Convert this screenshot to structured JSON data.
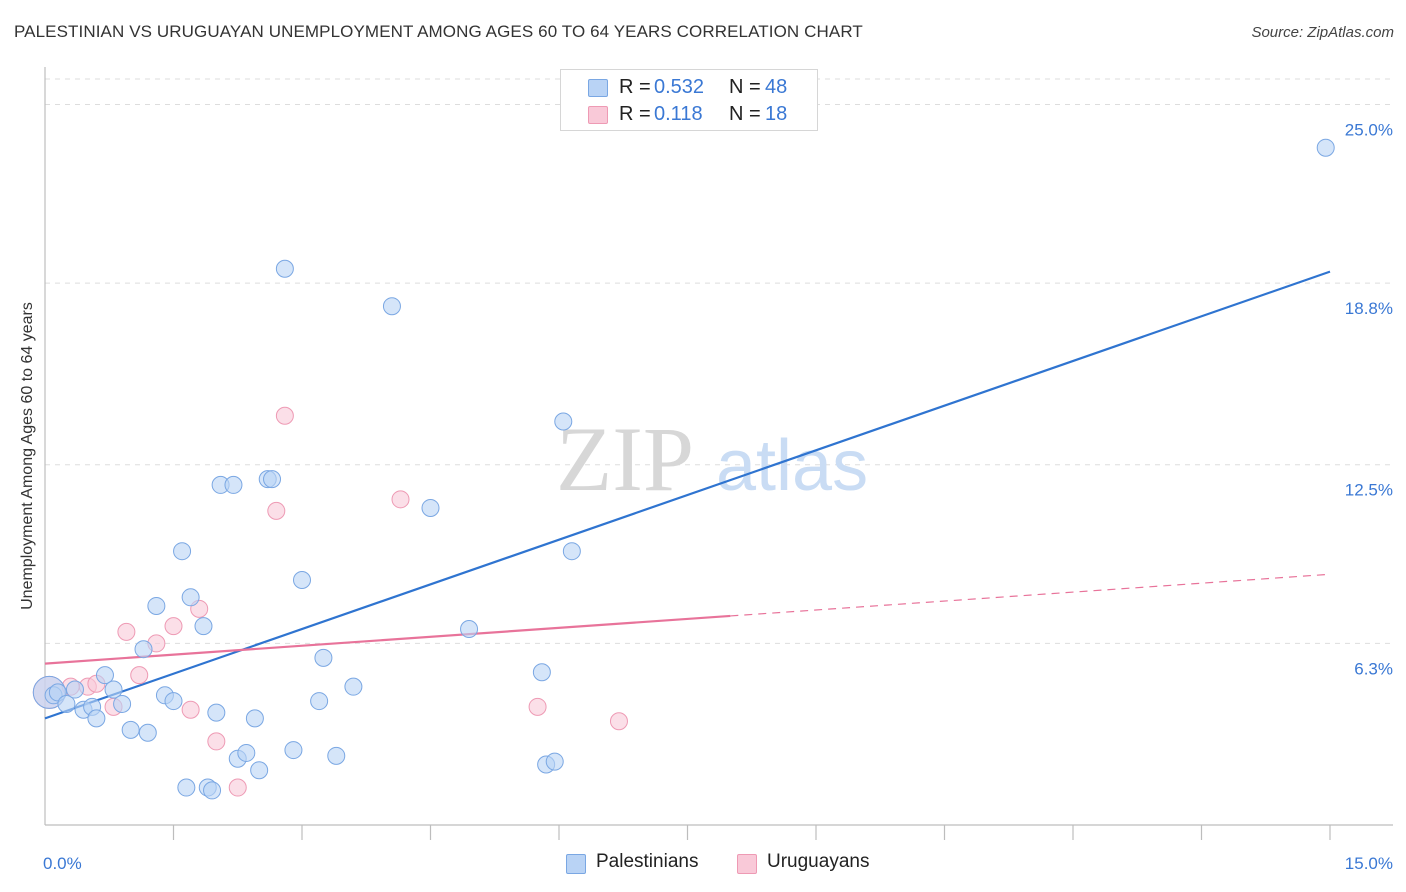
{
  "title": "PALESTINIAN VS URUGUAYAN UNEMPLOYMENT AMONG AGES 60 TO 64 YEARS CORRELATION CHART",
  "source": "Source: ZipAtlas.com",
  "watermark": {
    "part1": "ZIP",
    "part2": "atlas"
  },
  "legend": {
    "rows": [
      {
        "r_label": "R =",
        "r_value": "0.532",
        "n_label": "N =",
        "n_value": "48"
      },
      {
        "r_label": "R =",
        "r_value": "0.118",
        "n_label": "N =",
        "n_value": "18"
      }
    ],
    "bottom": [
      {
        "label": "Palestinians"
      },
      {
        "label": "Uruguayans"
      }
    ]
  },
  "colors": {
    "blue_fill": "#b9d3f5",
    "blue_stroke": "#7aa7e3",
    "blue_line": "#2f74d0",
    "pink_fill": "#f9c9d8",
    "pink_stroke": "#ee9ab4",
    "pink_line": "#e8739a",
    "grid": "#dddddd",
    "tick_text": "#3a78d4"
  },
  "chart_data": {
    "type": "scatter",
    "title": "PALESTINIAN VS URUGUAYAN UNEMPLOYMENT AMONG AGES 60 TO 64 YEARS CORRELATION CHART",
    "xlabel": "",
    "ylabel": "Unemployment Among Ages 60 to 64 years",
    "xlim": [
      0,
      15
    ],
    "ylim": [
      0,
      26.3
    ],
    "x_tick_labels": [
      "0.0%",
      "15.0%"
    ],
    "y_ticks": [
      6.3,
      12.5,
      18.8,
      25.0
    ],
    "y_tick_labels": [
      "6.3%",
      "12.5%",
      "18.8%",
      "25.0%"
    ],
    "series": [
      {
        "name": "Palestinians",
        "r": 0.532,
        "n": 48,
        "trend": {
          "x0": 0.0,
          "y0": 3.7,
          "x1": 15.0,
          "y1": 19.2,
          "dashed_from": null
        },
        "points": [
          [
            0.05,
            4.6
          ],
          [
            0.1,
            4.5
          ],
          [
            0.15,
            4.6
          ],
          [
            0.25,
            4.2
          ],
          [
            0.35,
            4.7
          ],
          [
            0.45,
            4.0
          ],
          [
            0.55,
            4.1
          ],
          [
            0.6,
            3.7
          ],
          [
            0.7,
            5.2
          ],
          [
            0.8,
            4.7
          ],
          [
            0.9,
            4.2
          ],
          [
            1.0,
            3.3
          ],
          [
            1.15,
            6.1
          ],
          [
            1.2,
            3.2
          ],
          [
            1.3,
            7.6
          ],
          [
            1.4,
            4.5
          ],
          [
            1.5,
            4.3
          ],
          [
            1.6,
            9.5
          ],
          [
            1.7,
            7.9
          ],
          [
            1.65,
            1.3
          ],
          [
            1.85,
            6.9
          ],
          [
            1.9,
            1.3
          ],
          [
            1.95,
            1.2
          ],
          [
            2.0,
            3.9
          ],
          [
            2.05,
            11.8
          ],
          [
            2.2,
            11.8
          ],
          [
            2.25,
            2.3
          ],
          [
            2.35,
            2.5
          ],
          [
            2.45,
            3.7
          ],
          [
            2.5,
            1.9
          ],
          [
            2.6,
            12.0
          ],
          [
            2.65,
            12.0
          ],
          [
            2.8,
            19.3
          ],
          [
            2.9,
            2.6
          ],
          [
            3.0,
            8.5
          ],
          [
            3.2,
            4.3
          ],
          [
            3.25,
            5.8
          ],
          [
            3.4,
            2.4
          ],
          [
            3.6,
            4.8
          ],
          [
            4.05,
            18.0
          ],
          [
            4.5,
            11.0
          ],
          [
            4.95,
            6.8
          ],
          [
            5.8,
            5.3
          ],
          [
            5.85,
            2.1
          ],
          [
            5.95,
            2.2
          ],
          [
            6.05,
            14.0
          ],
          [
            6.15,
            9.5
          ],
          [
            14.95,
            23.5
          ]
        ]
      },
      {
        "name": "Uruguayans",
        "r": 0.118,
        "n": 18,
        "trend": {
          "x0": 0.0,
          "y0": 5.6,
          "x1": 15.0,
          "y1": 8.7,
          "dashed_from": 8.0
        },
        "points": [
          [
            0.05,
            4.6
          ],
          [
            0.3,
            4.8
          ],
          [
            0.5,
            4.8
          ],
          [
            0.6,
            4.9
          ],
          [
            0.8,
            4.1
          ],
          [
            0.95,
            6.7
          ],
          [
            1.1,
            5.2
          ],
          [
            1.3,
            6.3
          ],
          [
            1.5,
            6.9
          ],
          [
            1.7,
            4.0
          ],
          [
            1.8,
            7.5
          ],
          [
            2.0,
            2.9
          ],
          [
            2.25,
            1.3
          ],
          [
            2.7,
            10.9
          ],
          [
            2.8,
            14.2
          ],
          [
            4.15,
            11.3
          ],
          [
            5.75,
            4.1
          ],
          [
            6.7,
            3.6
          ]
        ]
      }
    ]
  }
}
